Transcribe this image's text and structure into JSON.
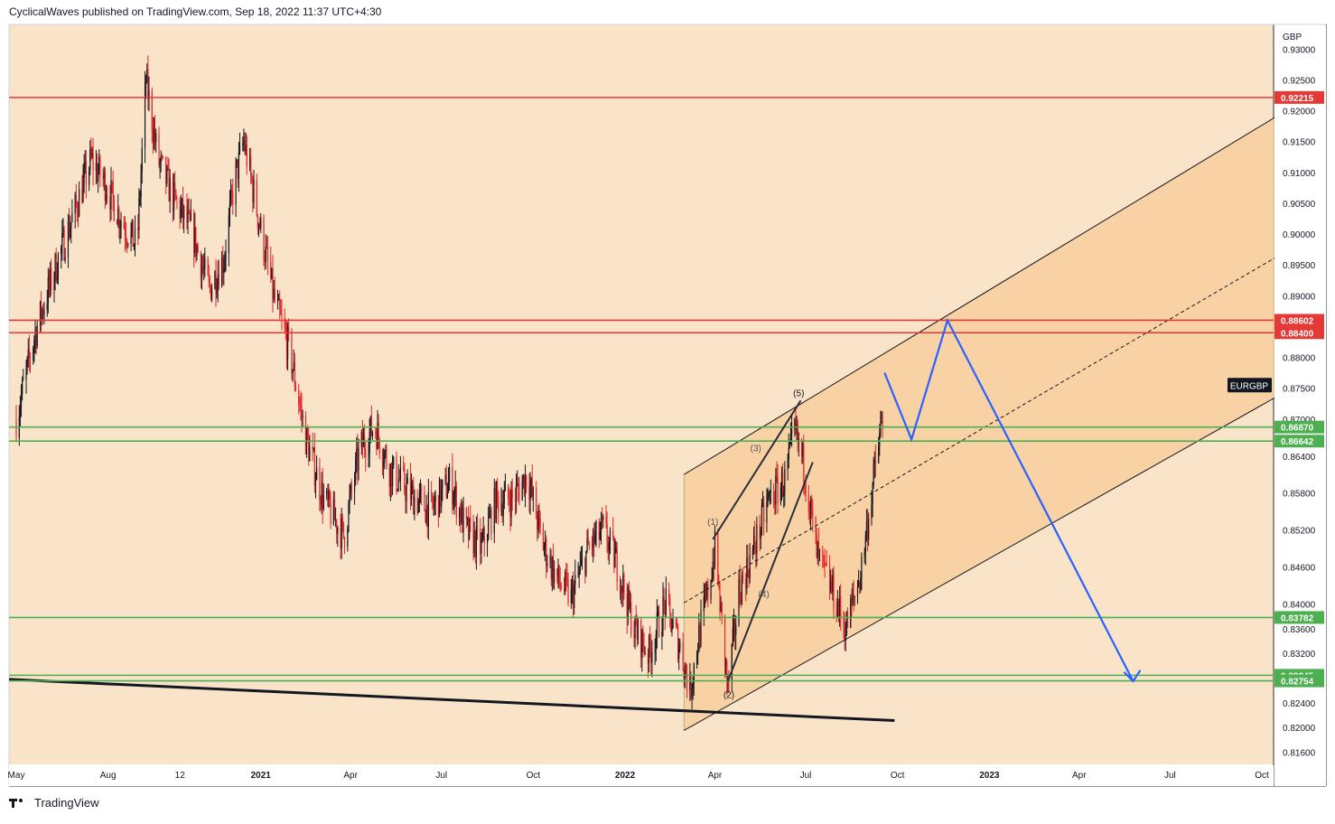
{
  "header": {
    "text": "CyclicalWaves published on TradingView.com, Sep 18, 2022 11:37 UTC+4:30"
  },
  "footer": {
    "brand": "TradingView",
    "logo_icon": "tradingview-logo-icon"
  },
  "chart_data": {
    "type": "candlestick",
    "symbol": "EURGBP",
    "currency": "GBP",
    "colors": {
      "background": "#fae4c9",
      "channel_fill": "#f7cf9e",
      "up_candle": "#131722",
      "down_candle": "#e0262b",
      "red_level": "#e53935",
      "green_level": "#4caf50",
      "forecast": "#2962ff"
    },
    "ylim": [
      0.814,
      0.934
    ],
    "y_ticks": [
      "0.93000",
      "0.92500",
      "0.92000",
      "0.91500",
      "0.91000",
      "0.90500",
      "0.90000",
      "0.89500",
      "0.89000",
      "0.88000",
      "0.87500",
      "0.87000",
      "0.86400",
      "0.85800",
      "0.85200",
      "0.84600",
      "0.84000",
      "0.83600",
      "0.83200",
      "0.82400",
      "0.82000",
      "0.81600"
    ],
    "x_ticks": [
      {
        "label": "May",
        "bold": false,
        "date": "2020-05"
      },
      {
        "label": "Aug",
        "bold": false,
        "date": "2020-08"
      },
      {
        "label": "12",
        "bold": false,
        "date": "2020-10-12"
      },
      {
        "label": "2021",
        "bold": true,
        "date": "2021-01"
      },
      {
        "label": "Apr",
        "bold": false,
        "date": "2021-04"
      },
      {
        "label": "Jul",
        "bold": false,
        "date": "2021-07"
      },
      {
        "label": "Oct",
        "bold": false,
        "date": "2021-10"
      },
      {
        "label": "2022",
        "bold": true,
        "date": "2022-01"
      },
      {
        "label": "Apr",
        "bold": false,
        "date": "2022-04"
      },
      {
        "label": "Jul",
        "bold": false,
        "date": "2022-07"
      },
      {
        "label": "Oct",
        "bold": false,
        "date": "2022-10"
      },
      {
        "label": "2023",
        "bold": true,
        "date": "2023-01"
      },
      {
        "label": "Apr",
        "bold": false,
        "date": "2023-04"
      },
      {
        "label": "Jul",
        "bold": false,
        "date": "2023-07"
      },
      {
        "label": "Oct",
        "bold": false,
        "date": "2023-10"
      }
    ],
    "levels": [
      {
        "price": 0.92215,
        "label": "0.92215",
        "kind": "red"
      },
      {
        "price": 0.88602,
        "label": "0.88602",
        "kind": "red"
      },
      {
        "price": 0.884,
        "label": "0.88400",
        "kind": "red"
      },
      {
        "price": 0.8687,
        "label": "0.86870",
        "kind": "green"
      },
      {
        "price": 0.86642,
        "label": "0.86642",
        "kind": "green"
      },
      {
        "price": 0.83782,
        "label": "0.83782",
        "kind": "green"
      },
      {
        "price": 0.82845,
        "label": "0.82845",
        "kind": "green"
      },
      {
        "price": 0.82754,
        "label": "0.82754",
        "kind": "green"
      }
    ],
    "symbol_tag_price": 0.8755,
    "price_path": [
      [
        "2020-05-01",
        0.87
      ],
      [
        "2020-05-20",
        0.884
      ],
      [
        "2020-06-10",
        0.895
      ],
      [
        "2020-06-25",
        0.902
      ],
      [
        "2020-07-15",
        0.912
      ],
      [
        "2020-07-30",
        0.908
      ],
      [
        "2020-08-15",
        0.902
      ],
      [
        "2020-08-30",
        0.898
      ],
      [
        "2020-09-08",
        0.925
      ],
      [
        "2020-09-20",
        0.912
      ],
      [
        "2020-10-05",
        0.906
      ],
      [
        "2020-10-25",
        0.9
      ],
      [
        "2020-11-10",
        0.891
      ],
      [
        "2020-11-25",
        0.896
      ],
      [
        "2020-12-05",
        0.908
      ],
      [
        "2020-12-15",
        0.915
      ],
      [
        "2020-12-28",
        0.904
      ],
      [
        "2021-01-15",
        0.889
      ],
      [
        "2021-01-30",
        0.881
      ],
      [
        "2021-02-15",
        0.867
      ],
      [
        "2021-03-05",
        0.857
      ],
      [
        "2021-03-25",
        0.851
      ],
      [
        "2021-04-10",
        0.865
      ],
      [
        "2021-04-25",
        0.869
      ],
      [
        "2021-05-10",
        0.862
      ],
      [
        "2021-05-30",
        0.858
      ],
      [
        "2021-06-20",
        0.855
      ],
      [
        "2021-07-10",
        0.86
      ],
      [
        "2021-07-25",
        0.852
      ],
      [
        "2021-08-10",
        0.849
      ],
      [
        "2021-08-25",
        0.857
      ],
      [
        "2021-09-10",
        0.857
      ],
      [
        "2021-09-25",
        0.861
      ],
      [
        "2021-10-10",
        0.85
      ],
      [
        "2021-10-25",
        0.844
      ],
      [
        "2021-11-08",
        0.841
      ],
      [
        "2021-11-25",
        0.849
      ],
      [
        "2021-12-10",
        0.852
      ],
      [
        "2021-12-25",
        0.846
      ],
      [
        "2022-01-10",
        0.836
      ],
      [
        "2022-01-25",
        0.832
      ],
      [
        "2022-02-10",
        0.84
      ],
      [
        "2022-02-25",
        0.833
      ],
      [
        "2022-03-07",
        0.826
      ],
      [
        "2022-03-15",
        0.834
      ],
      [
        "2022-03-25",
        0.842
      ],
      [
        "2022-04-01",
        0.849
      ],
      [
        "2022-04-14",
        0.826
      ],
      [
        "2022-04-25",
        0.842
      ],
      [
        "2022-05-10",
        0.849
      ],
      [
        "2022-05-25",
        0.857
      ],
      [
        "2022-06-10",
        0.86
      ],
      [
        "2022-06-20",
        0.868
      ],
      [
        "2022-06-30",
        0.862
      ],
      [
        "2022-07-12",
        0.848
      ],
      [
        "2022-07-28",
        0.842
      ],
      [
        "2022-08-10",
        0.836
      ],
      [
        "2022-08-25",
        0.845
      ],
      [
        "2022-09-05",
        0.858
      ],
      [
        "2022-09-12",
        0.866
      ],
      [
        "2022-09-18",
        0.872
      ]
    ],
    "channel": {
      "upper": [
        [
          "2022-03-01",
          0.861
        ],
        [
          "2023-10-20",
          0.9195
        ]
      ],
      "lower": [
        [
          "2022-03-01",
          0.8195
        ],
        [
          "2023-10-20",
          0.874
        ]
      ],
      "mid": [
        [
          "2022-03-01",
          0.8402
        ],
        [
          "2023-10-20",
          0.8967
        ]
      ]
    },
    "support_trendline": [
      [
        "2020-05-01",
        0.8278
      ],
      [
        "2022-09-28",
        0.8211
      ]
    ],
    "wave_labels": [
      {
        "label": "(1)",
        "date": "2022-03-30",
        "price": 0.8528,
        "color": "#555555"
      },
      {
        "label": "(2)",
        "date": "2022-04-15",
        "price": 0.8248,
        "color": "#131722"
      },
      {
        "label": "(3)",
        "date": "2022-05-12",
        "price": 0.8648,
        "color": "#555555"
      },
      {
        "label": "(4)",
        "date": "2022-05-20",
        "price": 0.8411,
        "color": "#555555"
      },
      {
        "label": "(5)",
        "date": "2022-06-24",
        "price": 0.8737,
        "color": "#131722"
      }
    ],
    "wave_lines": [
      [
        [
          "2022-03-30",
          0.8505
        ],
        [
          "2022-06-26",
          0.873
        ]
      ],
      [
        [
          "2022-04-14",
          0.8275
        ],
        [
          "2022-07-08",
          0.863
        ]
      ]
    ],
    "forecast_path": [
      [
        "2022-09-18",
        0.8775
      ],
      [
        "2022-10-15",
        0.8667
      ],
      [
        "2022-11-20",
        0.886
      ],
      [
        "2023-05-25",
        0.8275
      ]
    ],
    "forecast_arrow_end": [
      "2023-05-25",
      0.8275
    ]
  }
}
